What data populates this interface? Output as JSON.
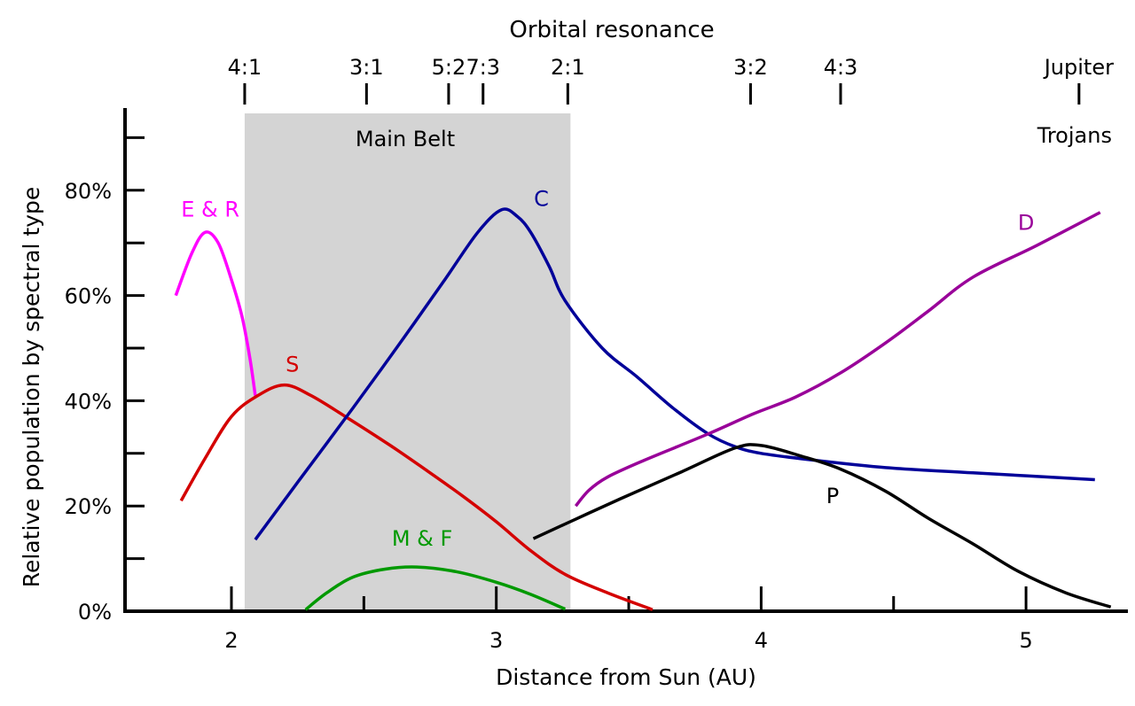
{
  "chart_data": {
    "type": "line",
    "xlabel": "Distance from Sun (AU)",
    "ylabel": "Relative population by spectral type",
    "top_axis_label": "Orbital resonance",
    "xlim": [
      1.6,
      5.4
    ],
    "ylim": [
      0,
      96
    ],
    "x_ticks": [
      2,
      2.5,
      3,
      3.5,
      4,
      4.5,
      5
    ],
    "x_tick_labels": [
      {
        "v": 2,
        "t": "2"
      },
      {
        "v": 3,
        "t": "3"
      },
      {
        "v": 4,
        "t": "4"
      },
      {
        "v": 5,
        "t": "5"
      }
    ],
    "y_ticks": [
      0,
      10,
      20,
      30,
      40,
      50,
      60,
      70,
      80,
      90
    ],
    "y_tick_labels": [
      {
        "v": 0,
        "t": "0%"
      },
      {
        "v": 20,
        "t": "20%"
      },
      {
        "v": 40,
        "t": "40%"
      },
      {
        "v": 60,
        "t": "60%"
      },
      {
        "v": 80,
        "t": "80%"
      }
    ],
    "grid": false,
    "region": {
      "label": "Main Belt",
      "x": [
        2.05,
        3.28
      ],
      "color": "#d4d4d4"
    },
    "resonances": [
      {
        "label": "4:1",
        "x": 2.05
      },
      {
        "label": "3:1",
        "x": 2.51
      },
      {
        "label": "5:2",
        "x": 2.82
      },
      {
        "label": "7:3",
        "x": 2.95
      },
      {
        "label": "2:1",
        "x": 3.27
      },
      {
        "label": "3:2",
        "x": 3.96
      },
      {
        "label": "4:3",
        "x": 4.3
      },
      {
        "label": "Jupiter",
        "label2": "Trojans",
        "x": 5.2
      }
    ],
    "series": [
      {
        "name": "E & R",
        "color": "#ff00ff",
        "label_at": [
          1.92,
          75
        ],
        "points": [
          [
            1.79,
            60
          ],
          [
            1.85,
            68
          ],
          [
            1.9,
            72
          ],
          [
            1.95,
            70
          ],
          [
            2.0,
            63
          ],
          [
            2.04,
            56
          ],
          [
            2.07,
            48
          ],
          [
            2.09,
            41
          ]
        ]
      },
      {
        "name": "S",
        "color": "#d40000",
        "label_at": [
          2.23,
          45.5
        ],
        "points": [
          [
            1.81,
            21
          ],
          [
            1.9,
            29
          ],
          [
            2.0,
            37
          ],
          [
            2.1,
            41
          ],
          [
            2.2,
            43
          ],
          [
            2.3,
            41
          ],
          [
            2.43,
            37
          ],
          [
            2.6,
            31.5
          ],
          [
            2.73,
            27
          ],
          [
            2.87,
            22
          ],
          [
            3.0,
            17
          ],
          [
            3.13,
            11.5
          ],
          [
            3.26,
            7
          ],
          [
            3.42,
            3.5
          ],
          [
            3.59,
            0.3
          ]
        ]
      },
      {
        "name": "C",
        "color": "#000099",
        "label_at": [
          3.17,
          77
        ],
        "points": [
          [
            2.09,
            13.6
          ],
          [
            2.25,
            24.5
          ],
          [
            2.46,
            38.7
          ],
          [
            2.63,
            50.5
          ],
          [
            2.8,
            62.6
          ],
          [
            2.93,
            72
          ],
          [
            3.02,
            76.3
          ],
          [
            3.08,
            75
          ],
          [
            3.13,
            72
          ],
          [
            3.2,
            65.5
          ],
          [
            3.26,
            59
          ],
          [
            3.4,
            50
          ],
          [
            3.53,
            44.6
          ],
          [
            3.67,
            38.5
          ],
          [
            3.8,
            33.7
          ],
          [
            3.9,
            31.3
          ],
          [
            4.0,
            30
          ],
          [
            4.2,
            28.7
          ],
          [
            4.47,
            27.3
          ],
          [
            4.8,
            26.3
          ],
          [
            5.26,
            25
          ]
        ]
      },
      {
        "name": "D",
        "color": "#990099",
        "label_at": [
          5.0,
          72.5
        ],
        "points": [
          [
            3.3,
            20
          ],
          [
            3.35,
            23
          ],
          [
            3.42,
            25.5
          ],
          [
            3.55,
            28.5
          ],
          [
            3.8,
            33.7
          ],
          [
            3.97,
            37.5
          ],
          [
            4.13,
            40.7
          ],
          [
            4.3,
            45.3
          ],
          [
            4.47,
            51
          ],
          [
            4.63,
            57
          ],
          [
            4.8,
            63.5
          ],
          [
            5.04,
            69.5
          ],
          [
            5.28,
            75.8
          ]
        ]
      },
      {
        "name": "P",
        "color": "#000000",
        "label_at": [
          4.27,
          20.5
        ],
        "points": [
          [
            3.14,
            13.8
          ],
          [
            3.3,
            17.5
          ],
          [
            3.47,
            21.4
          ],
          [
            3.7,
            26.5
          ],
          [
            3.9,
            31
          ],
          [
            4.0,
            31.5
          ],
          [
            4.15,
            29.5
          ],
          [
            4.3,
            27
          ],
          [
            4.47,
            22.8
          ],
          [
            4.63,
            17.7
          ],
          [
            4.8,
            12.8
          ],
          [
            4.97,
            7.6
          ],
          [
            5.15,
            3.5
          ],
          [
            5.32,
            0.8
          ]
        ]
      },
      {
        "name": "M & F",
        "color": "#009900",
        "label_at": [
          2.72,
          12.5
        ],
        "points": [
          [
            2.28,
            0.3
          ],
          [
            2.36,
            3.5
          ],
          [
            2.46,
            6.5
          ],
          [
            2.58,
            8
          ],
          [
            2.7,
            8.4
          ],
          [
            2.85,
            7.5
          ],
          [
            3.0,
            5.5
          ],
          [
            3.13,
            3.2
          ],
          [
            3.26,
            0.4
          ]
        ]
      }
    ]
  }
}
